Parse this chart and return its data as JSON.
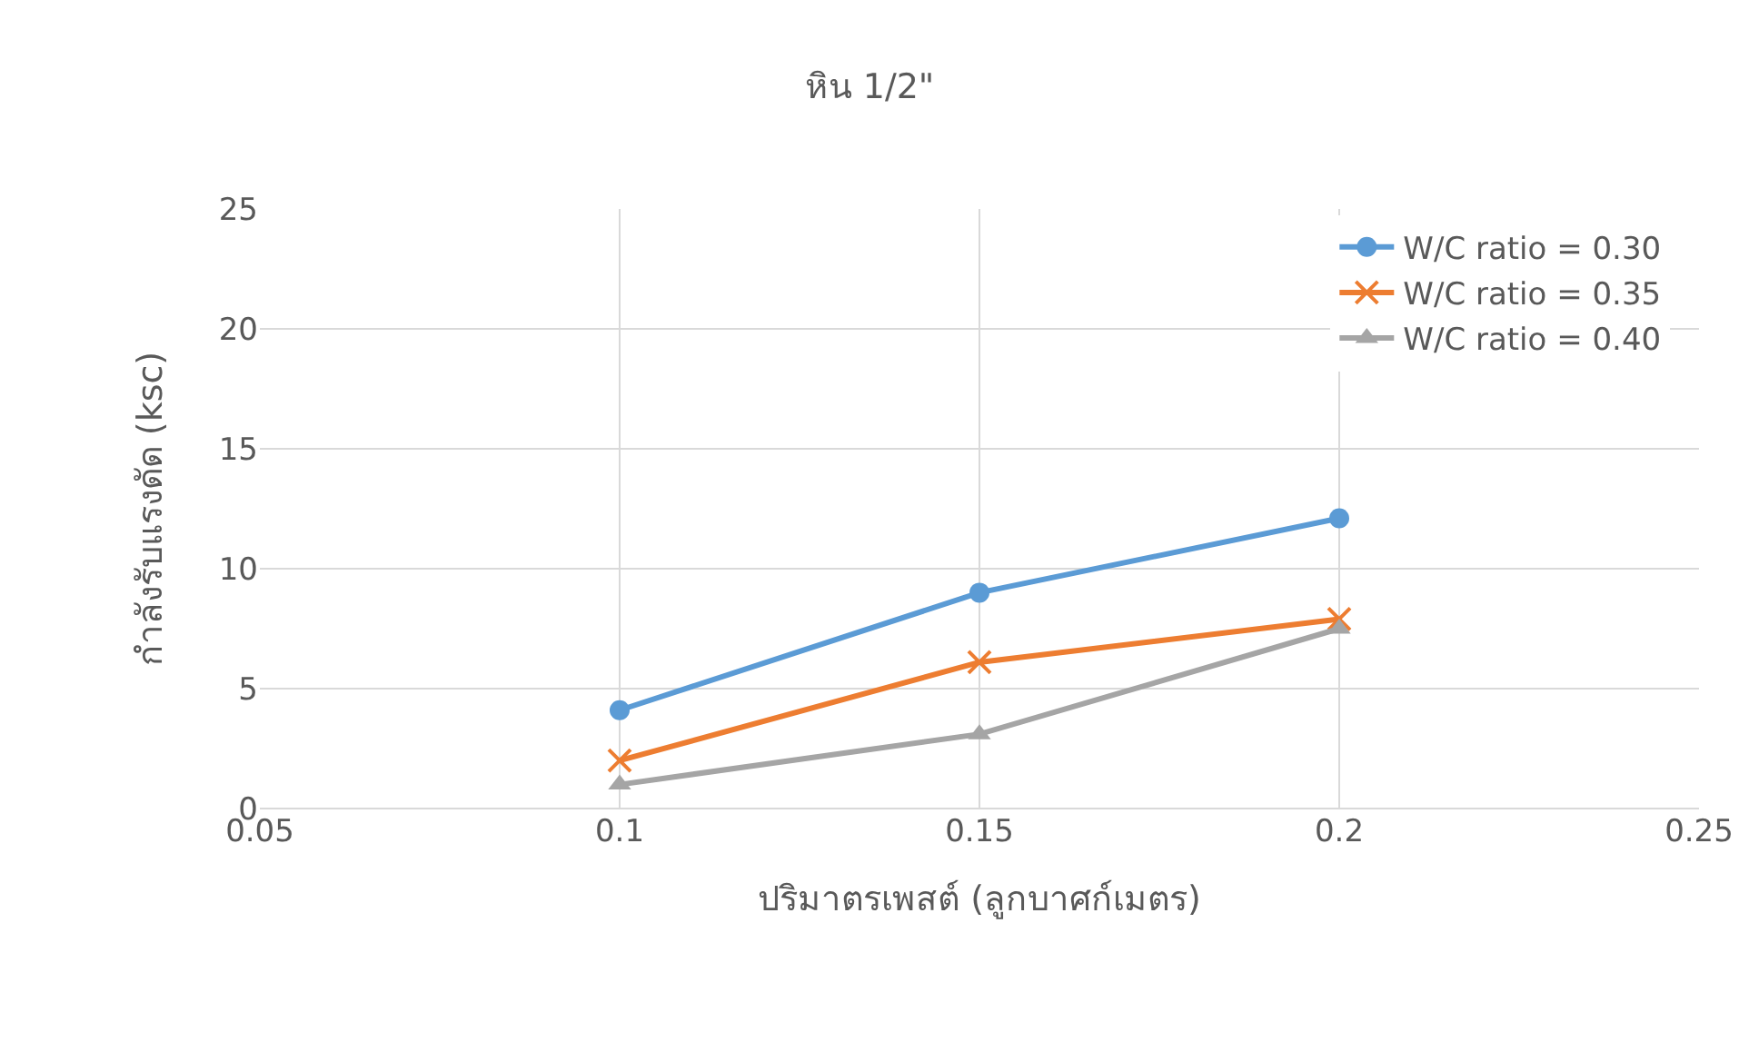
{
  "chart_data": {
    "type": "line",
    "title": "หิน 1/2\"",
    "xlabel": "ปริมาตรเพสต์ (ลูกบาศก์เมตร)",
    "ylabel": "กำลังรับแรงดัด (ksc)",
    "x": [
      0.1,
      0.15,
      0.2
    ],
    "series": [
      {
        "name": "W/C ratio = 0.30",
        "color": "#5b9bd5",
        "marker": "circle",
        "values": [
          4.1,
          9.0,
          12.1
        ]
      },
      {
        "name": "W/C ratio = 0.35",
        "color": "#ed7d31",
        "marker": "cross",
        "values": [
          2.0,
          6.1,
          7.9
        ]
      },
      {
        "name": "W/C ratio = 0.40",
        "color": "#a5a5a5",
        "marker": "triangle",
        "values": [
          1.0,
          3.1,
          7.5
        ]
      }
    ],
    "xlim": [
      0.05,
      0.25
    ],
    "xticks": [
      0.05,
      0.1,
      0.15,
      0.2,
      0.25
    ],
    "ylim": [
      0,
      25
    ],
    "yticks": [
      0,
      5,
      10,
      15,
      20,
      25
    ],
    "grid": true,
    "legend": "top right",
    "line_style": "solid"
  }
}
